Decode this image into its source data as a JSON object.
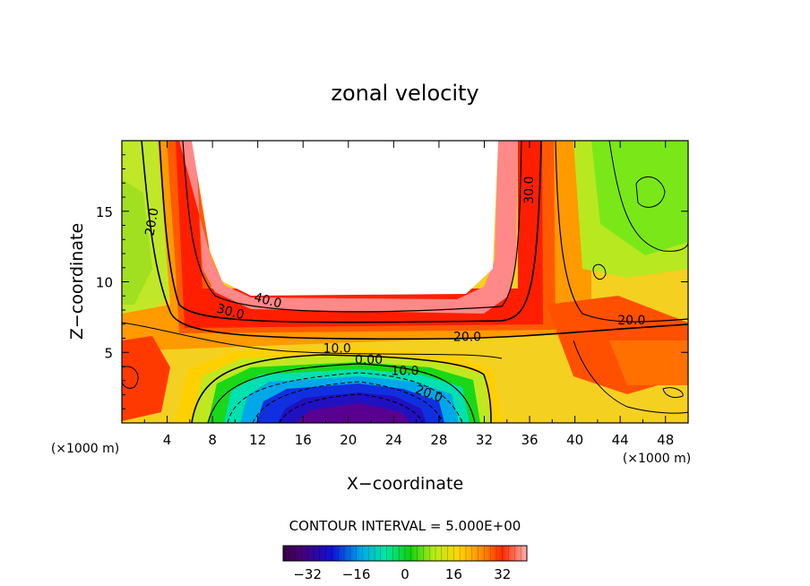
{
  "chart_data": {
    "type": "contour",
    "title": "zonal velocity",
    "xlabel": "X−coordinate",
    "ylabel": "Z−coordinate",
    "x_unit_left": "(×1000 m)",
    "x_unit_right": "(×1000 m)",
    "xlim": [
      0,
      50
    ],
    "ylim": [
      0,
      20
    ],
    "x_ticks": [
      4,
      8,
      12,
      16,
      20,
      24,
      28,
      32,
      36,
      40,
      44,
      48
    ],
    "y_ticks": [
      5,
      10,
      15
    ],
    "contour_interval_text": "CONTOUR INTERVAL = 5.000E+00",
    "colorbar": {
      "range": [
        -40,
        40
      ],
      "ticks": [
        -32,
        -16,
        0,
        16,
        32
      ],
      "tick_labels": [
        "−32",
        "−16",
        "0",
        "16",
        "32"
      ]
    },
    "contour_labels": [
      {
        "text": "20.0",
        "x": 3.0,
        "z": 14.2,
        "angle": -80
      },
      {
        "text": "30.0",
        "x": 9.5,
        "z": 7.6,
        "angle": 15
      },
      {
        "text": "40.0",
        "x": 12.8,
        "z": 8.4,
        "angle": 15
      },
      {
        "text": "10.0",
        "x": 19.0,
        "z": 5.0,
        "angle": 0
      },
      {
        "text": "0.00",
        "x": 21.8,
        "z": 4.2,
        "angle": 0
      },
      {
        "text": "10.0",
        "x": 25.0,
        "z": 3.4,
        "angle": 0
      },
      {
        "text": "20.0",
        "x": 27.0,
        "z": 1.8,
        "angle": 20
      },
      {
        "text": "20.0",
        "x": 30.5,
        "z": 5.8,
        "angle": 0
      },
      {
        "text": "30.0",
        "x": 36.3,
        "z": 16.5,
        "angle": -90
      },
      {
        "text": "20.0",
        "x": 45.0,
        "z": 7.0,
        "angle": 0
      }
    ]
  }
}
